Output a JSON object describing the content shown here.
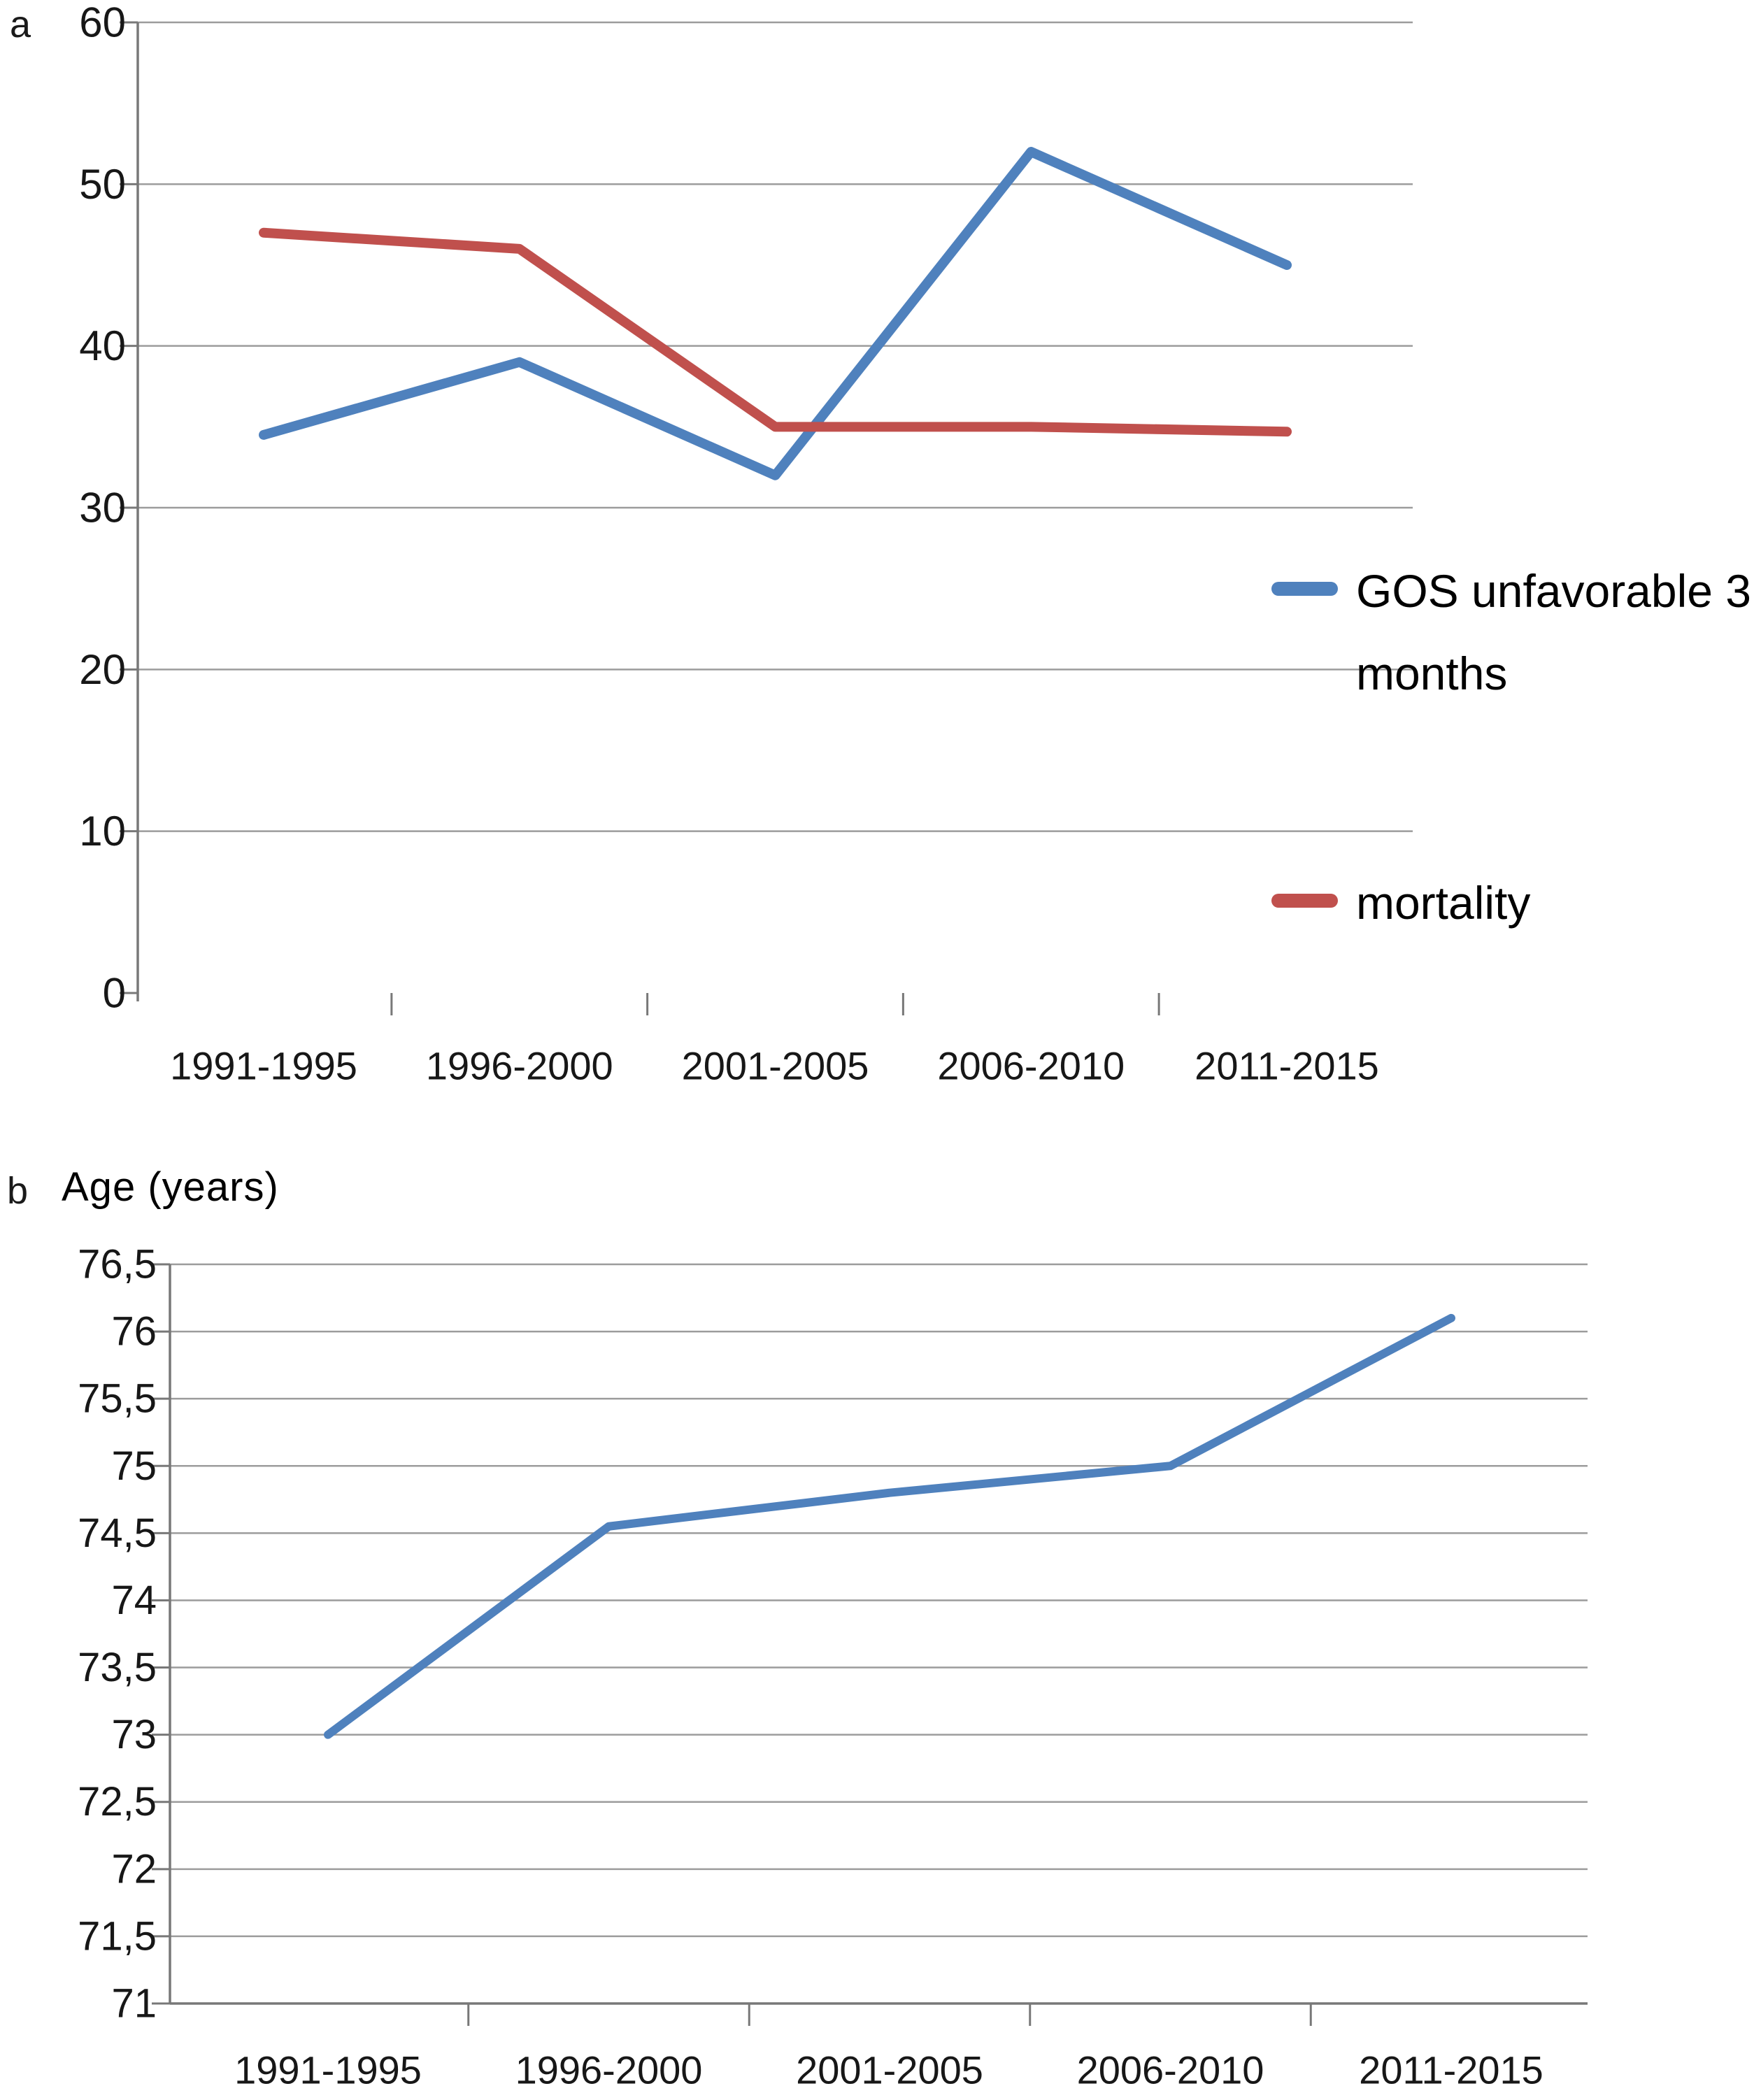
{
  "panels": [
    {
      "label": "a",
      "legend": {
        "items": [
          {
            "name": "GOS unfavorable 3 months",
            "color": "#4F81BD"
          },
          {
            "name": "mortality",
            "color": "#C0504D"
          }
        ]
      }
    },
    {
      "label": "b",
      "title": "Age (years)"
    }
  ],
  "chart_data": [
    {
      "type": "line",
      "panel": "a",
      "categories": [
        "1991-1995",
        "1996-2000",
        "2001-2005",
        "2006-2010",
        "2011-2015"
      ],
      "series": [
        {
          "name": "GOS unfavorable 3 months",
          "color": "#4F81BD",
          "values": [
            34.5,
            39,
            32,
            52,
            45
          ]
        },
        {
          "name": "mortality",
          "color": "#C0504D",
          "values": [
            47,
            46,
            35,
            35,
            34.7
          ]
        }
      ],
      "ylim": [
        0,
        60
      ],
      "ytick_step": 10,
      "grid": true,
      "legend_position": "right",
      "decimal_comma": false
    },
    {
      "type": "line",
      "panel": "b",
      "title": "Age (years)",
      "categories": [
        "1991-1995",
        "1996-2000",
        "2001-2005",
        "2006-2010",
        "2011-2015"
      ],
      "series": [
        {
          "name": "Age (years)",
          "color": "#4F81BD",
          "values": [
            73,
            74.55,
            74.8,
            75,
            76.1
          ]
        }
      ],
      "ylim": [
        71,
        76.5
      ],
      "ytick_step": 0.5,
      "grid": true,
      "legend_position": "none",
      "decimal_comma": true
    }
  ]
}
